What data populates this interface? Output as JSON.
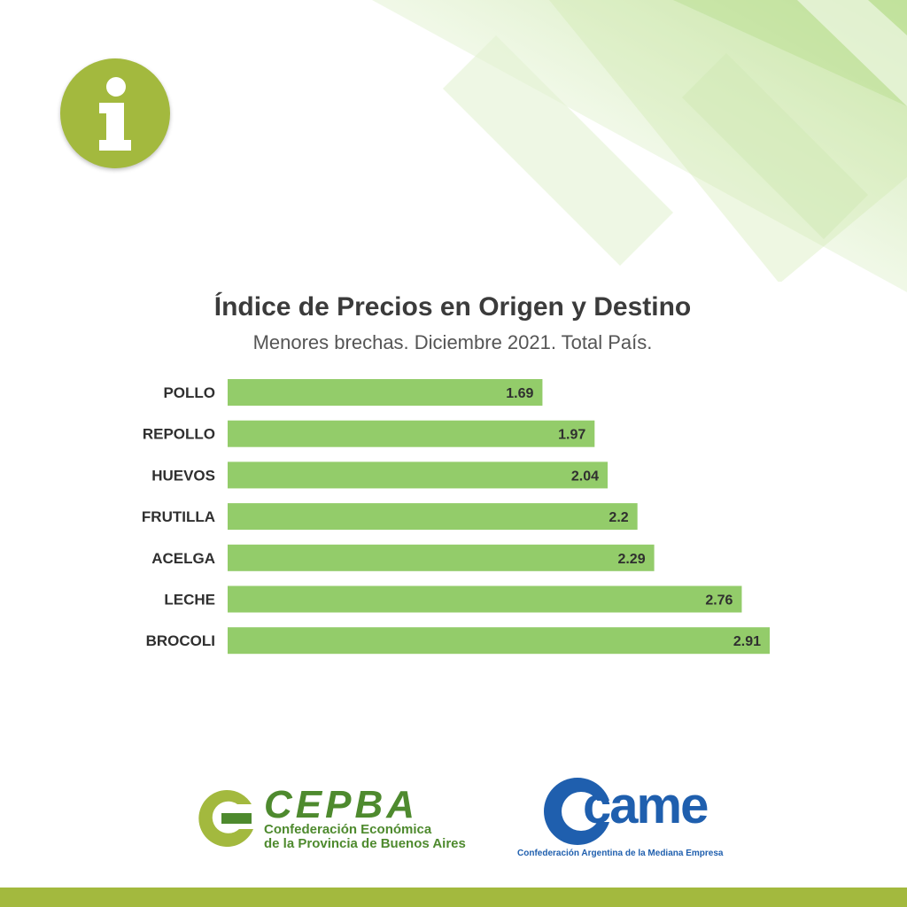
{
  "chart_data": {
    "type": "bar",
    "orientation": "horizontal",
    "title": "Índice de Precios en Origen y Destino",
    "subtitle": "Menores brechas. Diciembre 2021. Total País.",
    "categories": [
      "POLLO",
      "REPOLLO",
      "HUEVOS",
      "FRUTILLA",
      "ACELGA",
      "LECHE",
      "BROCOLI"
    ],
    "values": [
      1.69,
      1.97,
      2.04,
      2.2,
      2.29,
      2.76,
      2.91
    ],
    "value_labels": [
      "1.69",
      "1.97",
      "2.04",
      "2.2",
      "2.29",
      "2.76",
      "2.91"
    ],
    "xlim": [
      0,
      2.91
    ],
    "grid": false,
    "bar_color": "#93cc6a"
  },
  "logos": {
    "cepba": {
      "name": "CEPBA",
      "line1": "Confederación Económica",
      "line2": "de la Provincia de Buenos Aires",
      "color": "#4e8a2e"
    },
    "came": {
      "name": "came",
      "caption": "Confederación Argentina de la Mediana Empresa",
      "color": "#1f5fae"
    }
  },
  "colors": {
    "accent": "#a3b93e",
    "title_text": "#3b3b3b"
  },
  "icons": {
    "info": "info-icon"
  }
}
